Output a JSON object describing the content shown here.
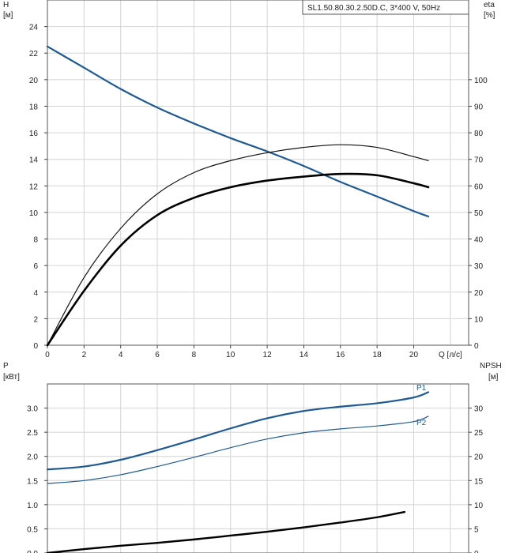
{
  "chart_data": [
    {
      "type": "line",
      "title": "SL1.50.80.30.2.50D.C, 3*400 V, 50Hz",
      "xlabel": "Q [л/с]",
      "ylabel_left": "H",
      "ylabel_left_unit": "[м]",
      "ylabel_right": "eta",
      "ylabel_right_unit": "[%]",
      "xlim": [
        0,
        23
      ],
      "ylim_left": [
        0,
        26
      ],
      "ylim_right": [
        0,
        130
      ],
      "grid": true,
      "x_ticks": [
        "0",
        "2",
        "4",
        "6",
        "8",
        "10",
        "12",
        "14",
        "16",
        "18",
        "20"
      ],
      "y_left_ticks": [
        "0",
        "2",
        "4",
        "6",
        "8",
        "10",
        "12",
        "14",
        "16",
        "18",
        "20",
        "22",
        "24"
      ],
      "y_right_ticks": [
        "0",
        "10",
        "20",
        "30",
        "40",
        "50",
        "60",
        "70",
        "80",
        "90",
        "100"
      ],
      "series": [
        {
          "name": "H",
          "axis": "left",
          "color": "#1f5a94",
          "x": [
            0,
            2,
            4,
            6,
            8,
            10,
            12,
            14,
            16,
            18,
            20,
            20.8
          ],
          "values": [
            22.5,
            20.9,
            19.3,
            17.9,
            16.7,
            15.6,
            14.6,
            13.5,
            12.3,
            11.2,
            10.1,
            9.7
          ]
        },
        {
          "axis": "right",
          "color": "#111111",
          "x": [
            0,
            2,
            4,
            6,
            8,
            10,
            12,
            14,
            16,
            18,
            20,
            20.8
          ],
          "values": [
            0,
            25.5,
            44,
            57,
            65,
            69.5,
            72.5,
            74.5,
            75.5,
            74.5,
            71,
            69.5
          ]
        },
        {
          "axis": "right",
          "color": "#000000",
          "x": [
            0,
            2,
            4,
            6,
            8,
            10,
            12,
            14,
            16,
            18,
            20,
            20.8
          ],
          "values": [
            0,
            20.5,
            37.5,
            49,
            55.5,
            59.5,
            62,
            63.5,
            64.5,
            64,
            61,
            59.5
          ]
        }
      ]
    },
    {
      "type": "line",
      "xlabel": "",
      "ylabel_left": "P",
      "ylabel_left_unit": "[кВт]",
      "ylabel_right": "NPSH",
      "ylabel_right_unit": "[м]",
      "xlim": [
        0,
        23
      ],
      "ylim_left": [
        0,
        3.5
      ],
      "ylim_right": [
        0,
        35
      ],
      "grid": true,
      "y_left_ticks": [
        "0.0",
        "0.5",
        "1.0",
        "1.5",
        "2.0",
        "2.5",
        "3.0"
      ],
      "y_right_ticks": [
        "0",
        "5",
        "10",
        "15",
        "20",
        "25",
        "30"
      ],
      "series": [
        {
          "name": "P1",
          "axis": "left",
          "color": "#1f5a94",
          "x": [
            0,
            2,
            4,
            6,
            8,
            10,
            12,
            14,
            16,
            18,
            20,
            20.8
          ],
          "values": [
            1.73,
            1.79,
            1.93,
            2.13,
            2.35,
            2.58,
            2.79,
            2.94,
            3.03,
            3.1,
            3.22,
            3.33
          ]
        },
        {
          "name": "P2",
          "axis": "left",
          "color": "#1f5a94",
          "x": [
            0,
            2,
            4,
            6,
            8,
            10,
            12,
            14,
            16,
            18,
            20,
            20.8
          ],
          "values": [
            1.44,
            1.5,
            1.62,
            1.79,
            1.98,
            2.18,
            2.36,
            2.49,
            2.57,
            2.63,
            2.72,
            2.83
          ]
        },
        {
          "axis": "right",
          "color": "#000000",
          "x": [
            0,
            2,
            4,
            6,
            8,
            10,
            12,
            14,
            16,
            18,
            19.5
          ],
          "values": [
            0,
            0.8,
            1.5,
            2.1,
            2.8,
            3.6,
            4.4,
            5.3,
            6.3,
            7.4,
            8.5
          ]
        }
      ]
    }
  ]
}
